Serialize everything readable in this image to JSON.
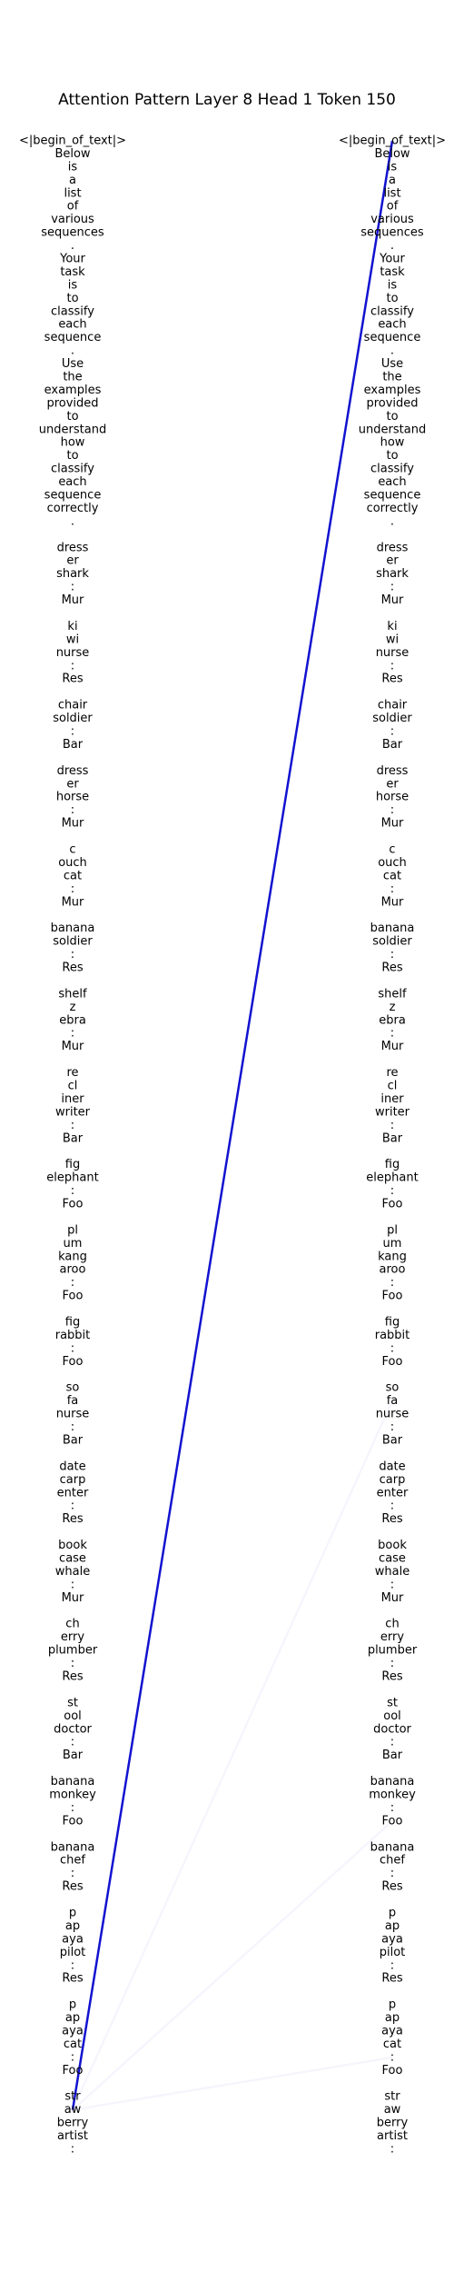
{
  "title": "Attention Pattern Layer 8 Head 1 Token 150",
  "tokens": [
    "<|begin_of_text|>",
    "Below",
    "is",
    "a",
    "list",
    "of",
    "various",
    "sequences",
    ".",
    "Your",
    "task",
    "is",
    "to",
    "classify",
    "each",
    "sequence",
    ".",
    "Use",
    "the",
    "examples",
    "provided",
    "to",
    "understand",
    "how",
    "to",
    "classify",
    "each",
    "sequence",
    "correctly",
    ".",
    "",
    "dress",
    "er",
    "shark",
    ":",
    "Mur",
    "",
    "ki",
    "wi",
    "nurse",
    ":",
    "Res",
    "",
    "chair",
    "soldier",
    ":",
    "Bar",
    "",
    "dress",
    "er",
    "horse",
    ":",
    "Mur",
    "",
    "c",
    "ouch",
    "cat",
    ":",
    "Mur",
    "",
    "banana",
    "soldier",
    ":",
    "Res",
    "",
    "shelf",
    "z",
    "ebra",
    ":",
    "Mur",
    "",
    "re",
    "cl",
    "iner",
    "writer",
    ":",
    "Bar",
    "",
    "fig",
    "elephant",
    ":",
    "Foo",
    "",
    "pl",
    "um",
    "kang",
    "aroo",
    ":",
    "Foo",
    "",
    "fig",
    "rabbit",
    ":",
    "Foo",
    "",
    "so",
    "fa",
    "nurse",
    ":",
    "Bar",
    "",
    "date",
    "carp",
    "enter",
    ":",
    "Res",
    "",
    "book",
    "case",
    "whale",
    ":",
    "Mur",
    "",
    "ch",
    "erry",
    "plumber",
    ":",
    "Res",
    "",
    "st",
    "ool",
    "doctor",
    ":",
    "Bar",
    "",
    "banana",
    "monkey",
    ":",
    "Foo",
    "",
    "banana",
    "chef",
    ":",
    "Res",
    "",
    "p",
    "ap",
    "aya",
    "pilot",
    ":",
    "Res",
    "",
    "p",
    "ap",
    "aya",
    "cat",
    ":",
    "Foo",
    "",
    "str",
    "aw",
    "berry",
    "artist",
    ":"
  ],
  "chart_data": {
    "type": "attention-pattern",
    "layer": 8,
    "head": 1,
    "query_token_index": 150,
    "edges": [
      {
        "from": 150,
        "to": 0,
        "weight": 0.93
      },
      {
        "from": 150,
        "to": 96,
        "weight": 0.01
      },
      {
        "from": 150,
        "to": 128,
        "weight": 0.02
      },
      {
        "from": 150,
        "to": 146,
        "weight": 0.02
      }
    ],
    "line_color": "#0000cc"
  }
}
